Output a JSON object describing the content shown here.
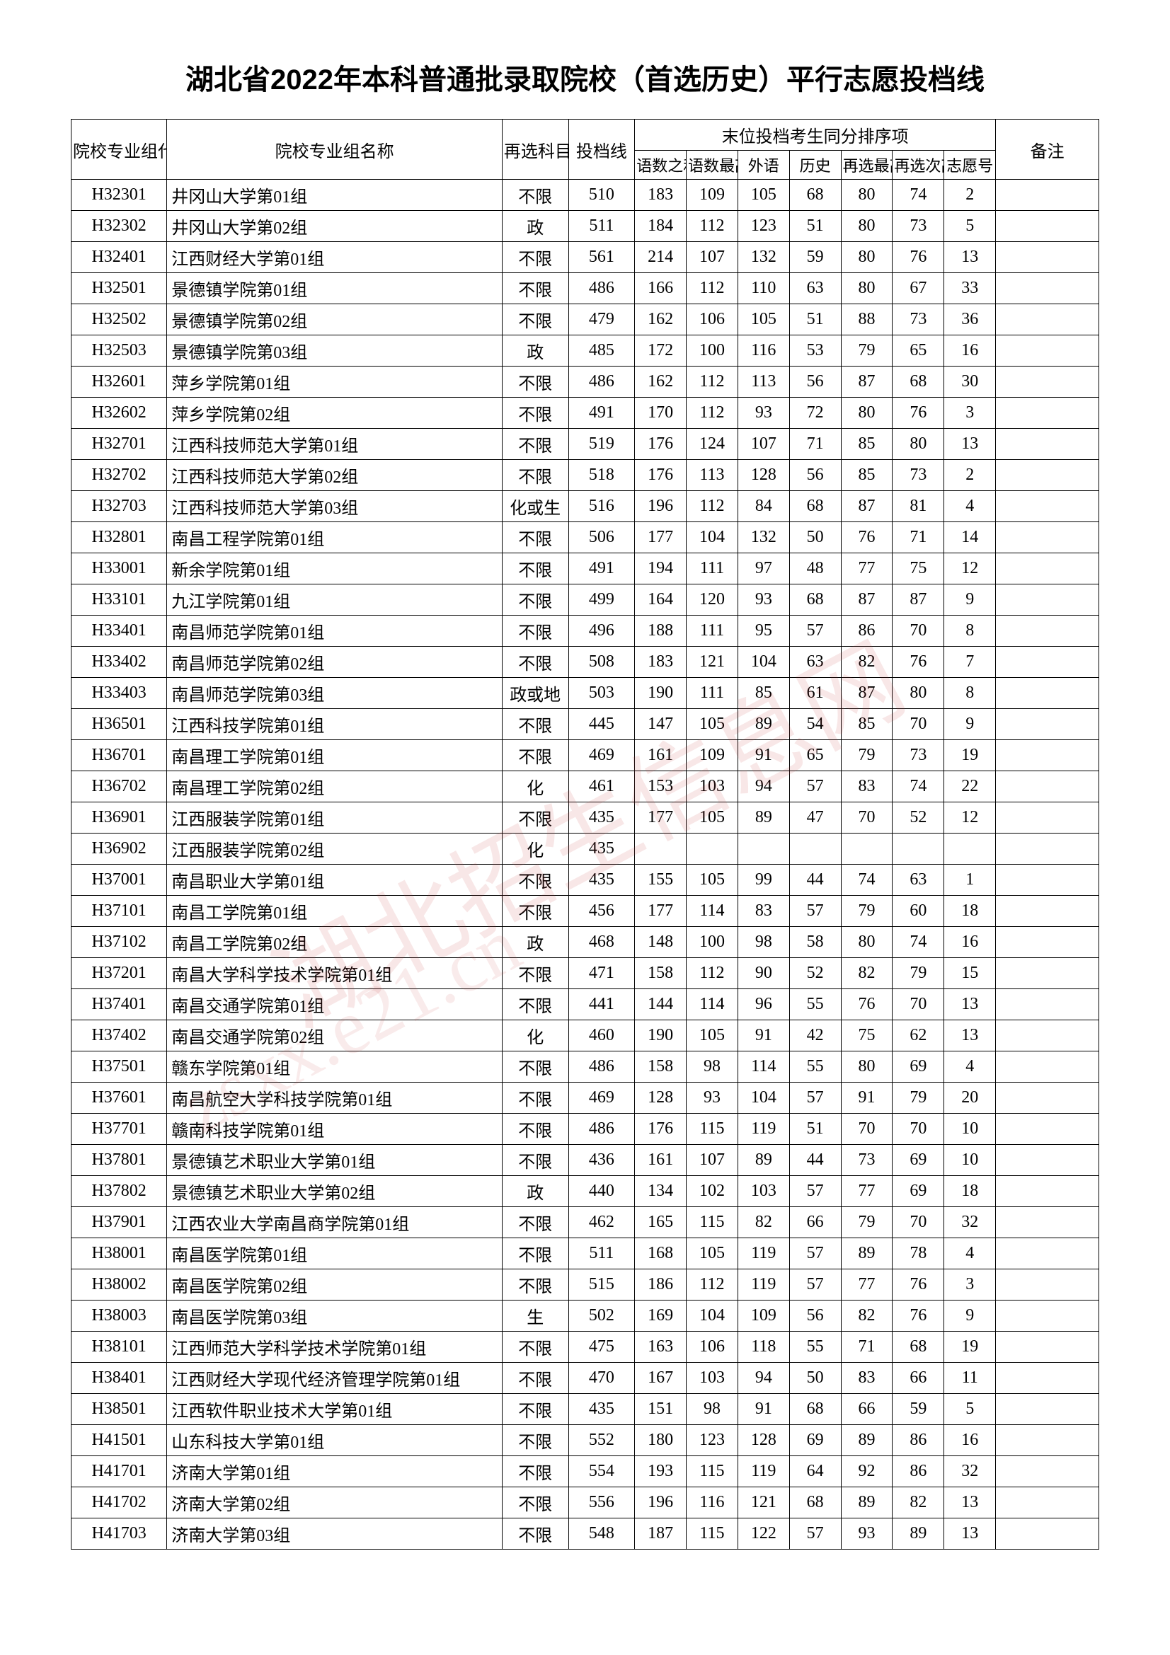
{
  "title": "湖北省2022年本科普通批录取院校（首选历史）平行志愿投档线",
  "watermark_main": "湖北招生信息网",
  "watermark_sub": "zsxx.e21.cn",
  "header": {
    "code": "院校专业组代号",
    "name": "院校专业组名称",
    "req": "再选科目要求",
    "score": "投档线",
    "tiebreak_group": "末位投档考生同分排序项",
    "remark": "备注",
    "sub": {
      "s1": "语数之和",
      "s2": "语数最高",
      "s3": "外语",
      "s4": "历史",
      "s5": "再选最高",
      "s6": "再选次高",
      "s7": "志愿号"
    }
  },
  "rows": [
    {
      "code": "H32301",
      "name": "井冈山大学第01组",
      "req": "不限",
      "score": "510",
      "s1": "183",
      "s2": "109",
      "s3": "105",
      "s4": "68",
      "s5": "80",
      "s6": "74",
      "s7": "2",
      "rm": ""
    },
    {
      "code": "H32302",
      "name": "井冈山大学第02组",
      "req": "政",
      "score": "511",
      "s1": "184",
      "s2": "112",
      "s3": "123",
      "s4": "51",
      "s5": "80",
      "s6": "73",
      "s7": "5",
      "rm": ""
    },
    {
      "code": "H32401",
      "name": "江西财经大学第01组",
      "req": "不限",
      "score": "561",
      "s1": "214",
      "s2": "107",
      "s3": "132",
      "s4": "59",
      "s5": "80",
      "s6": "76",
      "s7": "13",
      "rm": ""
    },
    {
      "code": "H32501",
      "name": "景德镇学院第01组",
      "req": "不限",
      "score": "486",
      "s1": "166",
      "s2": "112",
      "s3": "110",
      "s4": "63",
      "s5": "80",
      "s6": "67",
      "s7": "33",
      "rm": ""
    },
    {
      "code": "H32502",
      "name": "景德镇学院第02组",
      "req": "不限",
      "score": "479",
      "s1": "162",
      "s2": "106",
      "s3": "105",
      "s4": "51",
      "s5": "88",
      "s6": "73",
      "s7": "36",
      "rm": ""
    },
    {
      "code": "H32503",
      "name": "景德镇学院第03组",
      "req": "政",
      "score": "485",
      "s1": "172",
      "s2": "100",
      "s3": "116",
      "s4": "53",
      "s5": "79",
      "s6": "65",
      "s7": "16",
      "rm": ""
    },
    {
      "code": "H32601",
      "name": "萍乡学院第01组",
      "req": "不限",
      "score": "486",
      "s1": "162",
      "s2": "112",
      "s3": "113",
      "s4": "56",
      "s5": "87",
      "s6": "68",
      "s7": "30",
      "rm": ""
    },
    {
      "code": "H32602",
      "name": "萍乡学院第02组",
      "req": "不限",
      "score": "491",
      "s1": "170",
      "s2": "112",
      "s3": "93",
      "s4": "72",
      "s5": "80",
      "s6": "76",
      "s7": "3",
      "rm": ""
    },
    {
      "code": "H32701",
      "name": "江西科技师范大学第01组",
      "req": "不限",
      "score": "519",
      "s1": "176",
      "s2": "124",
      "s3": "107",
      "s4": "71",
      "s5": "85",
      "s6": "80",
      "s7": "13",
      "rm": ""
    },
    {
      "code": "H32702",
      "name": "江西科技师范大学第02组",
      "req": "不限",
      "score": "518",
      "s1": "176",
      "s2": "113",
      "s3": "128",
      "s4": "56",
      "s5": "85",
      "s6": "73",
      "s7": "2",
      "rm": ""
    },
    {
      "code": "H32703",
      "name": "江西科技师范大学第03组",
      "req": "化或生",
      "score": "516",
      "s1": "196",
      "s2": "112",
      "s3": "84",
      "s4": "68",
      "s5": "87",
      "s6": "81",
      "s7": "4",
      "rm": ""
    },
    {
      "code": "H32801",
      "name": "南昌工程学院第01组",
      "req": "不限",
      "score": "506",
      "s1": "177",
      "s2": "104",
      "s3": "132",
      "s4": "50",
      "s5": "76",
      "s6": "71",
      "s7": "14",
      "rm": ""
    },
    {
      "code": "H33001",
      "name": "新余学院第01组",
      "req": "不限",
      "score": "491",
      "s1": "194",
      "s2": "111",
      "s3": "97",
      "s4": "48",
      "s5": "77",
      "s6": "75",
      "s7": "12",
      "rm": ""
    },
    {
      "code": "H33101",
      "name": "九江学院第01组",
      "req": "不限",
      "score": "499",
      "s1": "164",
      "s2": "120",
      "s3": "93",
      "s4": "68",
      "s5": "87",
      "s6": "87",
      "s7": "9",
      "rm": ""
    },
    {
      "code": "H33401",
      "name": "南昌师范学院第01组",
      "req": "不限",
      "score": "496",
      "s1": "188",
      "s2": "111",
      "s3": "95",
      "s4": "57",
      "s5": "86",
      "s6": "70",
      "s7": "8",
      "rm": ""
    },
    {
      "code": "H33402",
      "name": "南昌师范学院第02组",
      "req": "不限",
      "score": "508",
      "s1": "183",
      "s2": "121",
      "s3": "104",
      "s4": "63",
      "s5": "82",
      "s6": "76",
      "s7": "7",
      "rm": ""
    },
    {
      "code": "H33403",
      "name": "南昌师范学院第03组",
      "req": "政或地",
      "score": "503",
      "s1": "190",
      "s2": "111",
      "s3": "85",
      "s4": "61",
      "s5": "87",
      "s6": "80",
      "s7": "8",
      "rm": ""
    },
    {
      "code": "H36501",
      "name": "江西科技学院第01组",
      "req": "不限",
      "score": "445",
      "s1": "147",
      "s2": "105",
      "s3": "89",
      "s4": "54",
      "s5": "85",
      "s6": "70",
      "s7": "9",
      "rm": ""
    },
    {
      "code": "H36701",
      "name": "南昌理工学院第01组",
      "req": "不限",
      "score": "469",
      "s1": "161",
      "s2": "109",
      "s3": "91",
      "s4": "65",
      "s5": "79",
      "s6": "73",
      "s7": "19",
      "rm": ""
    },
    {
      "code": "H36702",
      "name": "南昌理工学院第02组",
      "req": "化",
      "score": "461",
      "s1": "153",
      "s2": "103",
      "s3": "94",
      "s4": "57",
      "s5": "83",
      "s6": "74",
      "s7": "22",
      "rm": ""
    },
    {
      "code": "H36901",
      "name": "江西服装学院第01组",
      "req": "不限",
      "score": "435",
      "s1": "177",
      "s2": "105",
      "s3": "89",
      "s4": "47",
      "s5": "70",
      "s6": "52",
      "s7": "12",
      "rm": ""
    },
    {
      "code": "H36902",
      "name": "江西服装学院第02组",
      "req": "化",
      "score": "435",
      "s1": "",
      "s2": "",
      "s3": "",
      "s4": "",
      "s5": "",
      "s6": "",
      "s7": "",
      "rm": ""
    },
    {
      "code": "H37001",
      "name": "南昌职业大学第01组",
      "req": "不限",
      "score": "435",
      "s1": "155",
      "s2": "105",
      "s3": "99",
      "s4": "44",
      "s5": "74",
      "s6": "63",
      "s7": "1",
      "rm": ""
    },
    {
      "code": "H37101",
      "name": "南昌工学院第01组",
      "req": "不限",
      "score": "456",
      "s1": "177",
      "s2": "114",
      "s3": "83",
      "s4": "57",
      "s5": "79",
      "s6": "60",
      "s7": "18",
      "rm": ""
    },
    {
      "code": "H37102",
      "name": "南昌工学院第02组",
      "req": "政",
      "score": "468",
      "s1": "148",
      "s2": "100",
      "s3": "98",
      "s4": "58",
      "s5": "80",
      "s6": "74",
      "s7": "16",
      "rm": ""
    },
    {
      "code": "H37201",
      "name": "南昌大学科学技术学院第01组",
      "req": "不限",
      "score": "471",
      "s1": "158",
      "s2": "112",
      "s3": "90",
      "s4": "52",
      "s5": "82",
      "s6": "79",
      "s7": "15",
      "rm": ""
    },
    {
      "code": "H37401",
      "name": "南昌交通学院第01组",
      "req": "不限",
      "score": "441",
      "s1": "144",
      "s2": "114",
      "s3": "96",
      "s4": "55",
      "s5": "76",
      "s6": "70",
      "s7": "13",
      "rm": ""
    },
    {
      "code": "H37402",
      "name": "南昌交通学院第02组",
      "req": "化",
      "score": "460",
      "s1": "190",
      "s2": "105",
      "s3": "91",
      "s4": "42",
      "s5": "75",
      "s6": "62",
      "s7": "13",
      "rm": ""
    },
    {
      "code": "H37501",
      "name": "赣东学院第01组",
      "req": "不限",
      "score": "486",
      "s1": "158",
      "s2": "98",
      "s3": "114",
      "s4": "55",
      "s5": "80",
      "s6": "69",
      "s7": "4",
      "rm": ""
    },
    {
      "code": "H37601",
      "name": "南昌航空大学科技学院第01组",
      "req": "不限",
      "score": "469",
      "s1": "128",
      "s2": "93",
      "s3": "104",
      "s4": "57",
      "s5": "91",
      "s6": "79",
      "s7": "20",
      "rm": ""
    },
    {
      "code": "H37701",
      "name": "赣南科技学院第01组",
      "req": "不限",
      "score": "486",
      "s1": "176",
      "s2": "115",
      "s3": "119",
      "s4": "51",
      "s5": "70",
      "s6": "70",
      "s7": "10",
      "rm": ""
    },
    {
      "code": "H37801",
      "name": "景德镇艺术职业大学第01组",
      "req": "不限",
      "score": "436",
      "s1": "161",
      "s2": "107",
      "s3": "89",
      "s4": "44",
      "s5": "73",
      "s6": "69",
      "s7": "10",
      "rm": ""
    },
    {
      "code": "H37802",
      "name": "景德镇艺术职业大学第02组",
      "req": "政",
      "score": "440",
      "s1": "134",
      "s2": "102",
      "s3": "103",
      "s4": "57",
      "s5": "77",
      "s6": "69",
      "s7": "18",
      "rm": ""
    },
    {
      "code": "H37901",
      "name": "江西农业大学南昌商学院第01组",
      "req": "不限",
      "score": "462",
      "s1": "165",
      "s2": "115",
      "s3": "82",
      "s4": "66",
      "s5": "79",
      "s6": "70",
      "s7": "32",
      "rm": ""
    },
    {
      "code": "H38001",
      "name": "南昌医学院第01组",
      "req": "不限",
      "score": "511",
      "s1": "168",
      "s2": "105",
      "s3": "119",
      "s4": "57",
      "s5": "89",
      "s6": "78",
      "s7": "4",
      "rm": ""
    },
    {
      "code": "H38002",
      "name": "南昌医学院第02组",
      "req": "不限",
      "score": "515",
      "s1": "186",
      "s2": "112",
      "s3": "119",
      "s4": "57",
      "s5": "77",
      "s6": "76",
      "s7": "3",
      "rm": ""
    },
    {
      "code": "H38003",
      "name": "南昌医学院第03组",
      "req": "生",
      "score": "502",
      "s1": "169",
      "s2": "104",
      "s3": "109",
      "s4": "56",
      "s5": "82",
      "s6": "76",
      "s7": "9",
      "rm": ""
    },
    {
      "code": "H38101",
      "name": "江西师范大学科学技术学院第01组",
      "req": "不限",
      "score": "475",
      "s1": "163",
      "s2": "106",
      "s3": "118",
      "s4": "55",
      "s5": "71",
      "s6": "68",
      "s7": "19",
      "rm": ""
    },
    {
      "code": "H38401",
      "name": "江西财经大学现代经济管理学院第01组",
      "req": "不限",
      "score": "470",
      "s1": "167",
      "s2": "103",
      "s3": "94",
      "s4": "50",
      "s5": "83",
      "s6": "66",
      "s7": "11",
      "rm": ""
    },
    {
      "code": "H38501",
      "name": "江西软件职业技术大学第01组",
      "req": "不限",
      "score": "435",
      "s1": "151",
      "s2": "98",
      "s3": "91",
      "s4": "68",
      "s5": "66",
      "s6": "59",
      "s7": "5",
      "rm": ""
    },
    {
      "code": "H41501",
      "name": "山东科技大学第01组",
      "req": "不限",
      "score": "552",
      "s1": "180",
      "s2": "123",
      "s3": "128",
      "s4": "69",
      "s5": "89",
      "s6": "86",
      "s7": "16",
      "rm": ""
    },
    {
      "code": "H41701",
      "name": "济南大学第01组",
      "req": "不限",
      "score": "554",
      "s1": "193",
      "s2": "115",
      "s3": "119",
      "s4": "64",
      "s5": "92",
      "s6": "86",
      "s7": "32",
      "rm": ""
    },
    {
      "code": "H41702",
      "name": "济南大学第02组",
      "req": "不限",
      "score": "556",
      "s1": "196",
      "s2": "116",
      "s3": "121",
      "s4": "68",
      "s5": "89",
      "s6": "82",
      "s7": "13",
      "rm": ""
    },
    {
      "code": "H41703",
      "name": "济南大学第03组",
      "req": "不限",
      "score": "548",
      "s1": "187",
      "s2": "115",
      "s3": "122",
      "s4": "57",
      "s5": "93",
      "s6": "89",
      "s7": "13",
      "rm": ""
    }
  ]
}
